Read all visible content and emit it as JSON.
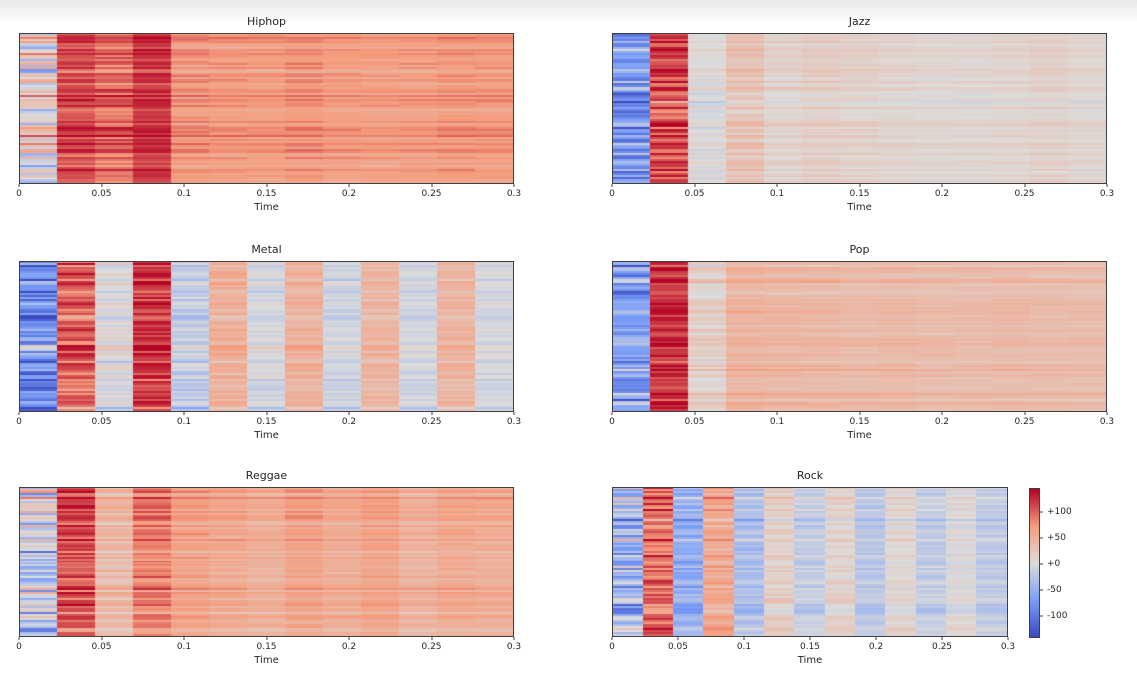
{
  "figure": {
    "background": "#ffffff",
    "text_color": "#262626",
    "spine_color": "#3f3f3f"
  },
  "chart_data": {
    "type": "heatmap",
    "xlabel": "Time",
    "x_range": [
      0,
      0.3
    ],
    "x_ticks": [
      "0",
      "0.05",
      "0.1",
      "0.15",
      "0.2",
      "0.25",
      "0.3"
    ],
    "n_time_bins": 13,
    "n_rows": 75,
    "colormap": "coolwarm",
    "colormap_stops": [
      [
        0.0,
        "#3b4cc0"
      ],
      [
        0.25,
        "#7c9ff9"
      ],
      [
        0.5,
        "#dddcdb"
      ],
      [
        0.75,
        "#f59c7d"
      ],
      [
        1.0,
        "#b40426"
      ]
    ],
    "color_scale": {
      "vmin": -142,
      "vmax": 146
    },
    "colorbar": {
      "tick_values": [
        100,
        50,
        0,
        -50,
        -100
      ],
      "tick_labels": [
        "+100",
        "+50",
        "+0",
        "-50",
        "-100"
      ]
    },
    "charts": [
      {
        "title": "Hiphop",
        "column_means": [
          8,
          112,
          98,
          122,
          75,
          72,
          70,
          76,
          70,
          68,
          70,
          74,
          72
        ],
        "column_sigmas": [
          45,
          18,
          22,
          15,
          14,
          12,
          12,
          12,
          11,
          10,
          11,
          12,
          11
        ]
      },
      {
        "title": "Jazz",
        "column_means": [
          -70,
          118,
          4,
          32,
          14,
          20,
          16,
          13,
          10,
          10,
          12,
          16,
          11
        ],
        "column_sigmas": [
          30,
          22,
          8,
          10,
          8,
          7,
          7,
          6,
          6,
          6,
          6,
          7,
          6
        ]
      },
      {
        "title": "Metal",
        "column_means": [
          -80,
          105,
          4,
          125,
          -15,
          52,
          -2,
          50,
          -6,
          46,
          -5,
          47,
          -3
        ],
        "column_sigmas": [
          35,
          22,
          14,
          18,
          14,
          12,
          10,
          11,
          9,
          10,
          8,
          10,
          8
        ]
      },
      {
        "title": "Pop",
        "column_means": [
          -68,
          125,
          16,
          46,
          43,
          41,
          39,
          41,
          37,
          37,
          39,
          37,
          37
        ],
        "column_sigmas": [
          32,
          18,
          14,
          10,
          9,
          9,
          8,
          8,
          8,
          7,
          8,
          7,
          7
        ]
      },
      {
        "title": "Reggae",
        "column_means": [
          -10,
          115,
          44,
          92,
          68,
          60,
          54,
          66,
          56,
          66,
          51,
          60,
          56
        ],
        "column_sigmas": [
          40,
          20,
          14,
          16,
          12,
          11,
          10,
          11,
          10,
          10,
          10,
          10,
          10
        ]
      },
      {
        "title": "Rock",
        "column_means": [
          -38,
          98,
          -50,
          60,
          -30,
          18,
          -15,
          14,
          -22,
          10,
          -16,
          4,
          -18
        ],
        "column_sigmas": [
          35,
          20,
          16,
          14,
          12,
          10,
          9,
          9,
          8,
          8,
          8,
          8,
          8
        ]
      }
    ]
  }
}
